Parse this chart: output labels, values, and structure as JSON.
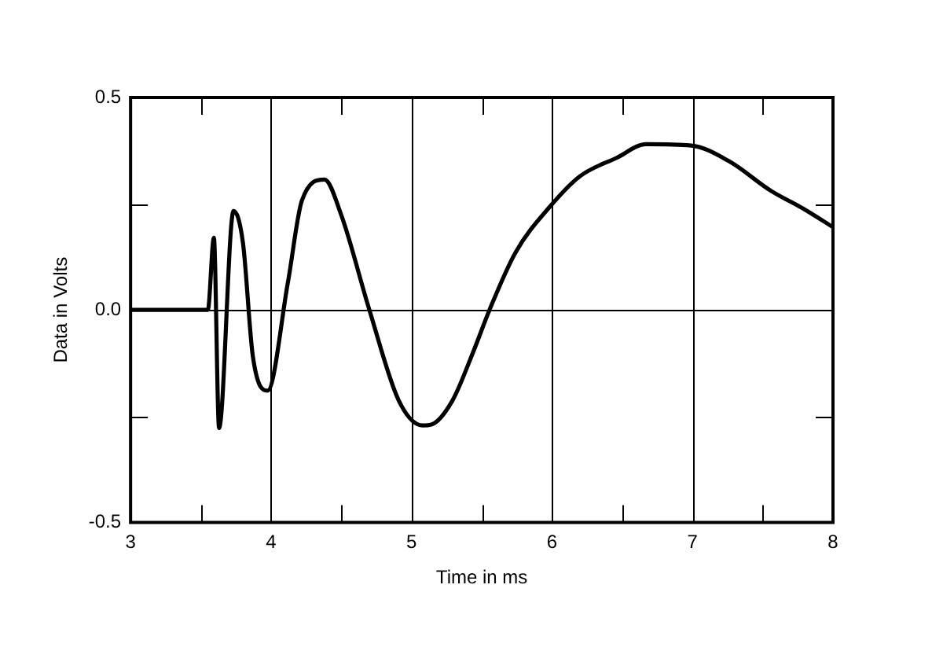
{
  "chart_data": {
    "type": "line",
    "xlabel": "Time in ms",
    "ylabel": "Data in Volts",
    "xlim": [
      3,
      8
    ],
    "ylim": [
      -0.5,
      0.5
    ],
    "xticks": [
      3,
      {
        "value": 3.5,
        "label": null
      },
      4,
      {
        "value": 4.5,
        "label": null
      },
      5,
      {
        "value": 5.5,
        "label": null
      },
      6,
      {
        "value": 6.5,
        "label": null
      },
      7,
      {
        "value": 7.5,
        "label": null
      },
      8
    ],
    "yticks": [
      {
        "value": -0.5,
        "label": "-0.5"
      },
      {
        "value": -0.25,
        "label": null
      },
      {
        "value": 0,
        "label": "0.0"
      },
      {
        "value": 0.25,
        "label": null
      },
      {
        "value": 0.5,
        "label": "0.5"
      }
    ],
    "grid": true,
    "marker": "none",
    "line_style": "solid",
    "series": [
      {
        "color": "#000000",
        "x": [
          3,
          3.55,
          3.593,
          3.63,
          3.733,
          3.8,
          3.87,
          3.975,
          4.12,
          4.22,
          4.38,
          4.5,
          4.7,
          4.91,
          5.08,
          5.14,
          5.29,
          5.44,
          5.555,
          5.74,
          5.99,
          6.2,
          6.46,
          6.67,
          6.99,
          7.26,
          7.56,
          7.78,
          8
        ],
        "values": [
          0,
          0,
          0.17,
          -0.278,
          0.233,
          0.158,
          -0.108,
          -0.19,
          0.065,
          0.258,
          0.307,
          0.223,
          0,
          -0.214,
          -0.272,
          -0.27,
          -0.214,
          -0.098,
          0,
          0.135,
          0.245,
          0.315,
          0.358,
          0.39,
          0.387,
          0.35,
          0.28,
          0.24,
          0.195
        ]
      }
    ]
  }
}
